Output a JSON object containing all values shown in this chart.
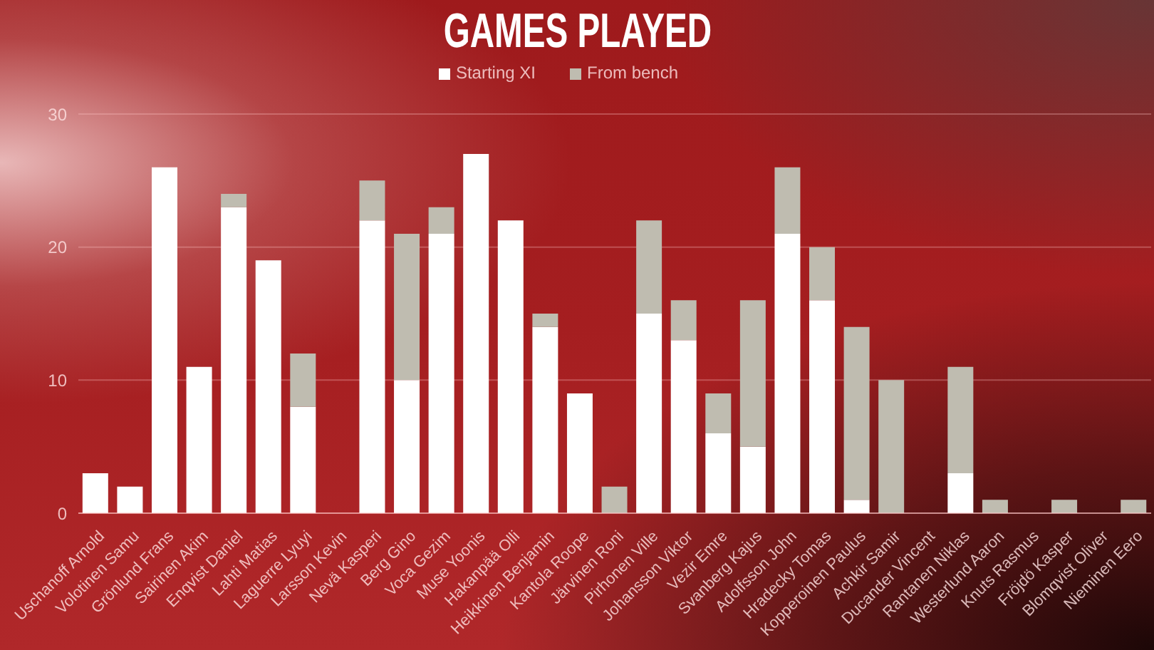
{
  "chart_data": {
    "type": "bar",
    "title": "GAMES PLAYED",
    "categories": [
      "Uschanoff Arnold",
      "Volotinen Samu",
      "Grönlund Frans",
      "Sairinen Akim",
      "Enqvist Daniel",
      "Lahti Matias",
      "Laguerre Lyuyi",
      "Larsson Kevin",
      "Nevä Kasperi",
      "Berg Gino",
      "Voca Gezim",
      "Muse Yoonis",
      "Hakanpää Olli",
      "Heikkinen Benjamin",
      "Kantola Roope",
      "Järvinen Roni",
      "Pirhonen Ville",
      "Johansson Viktor",
      "Vezir Emre",
      "Svanberg Kajus",
      "Adolfsson John",
      "Hradecky Tomas",
      "Kopperoinen Paulus",
      "Achkir Samir",
      "Ducander Vincent",
      "Rantanen Niklas",
      "Westerlund Aaron",
      "Knuts Rasmus",
      "Fröjdö Kasper",
      "Blomqvist Oliver",
      "Nieminen Eero"
    ],
    "series": [
      {
        "name": "Starting XI",
        "color": "#ffffff",
        "values": [
          3,
          2,
          26,
          11,
          23,
          19,
          8,
          0,
          22,
          10,
          21,
          27,
          22,
          14,
          9,
          0,
          15,
          13,
          6,
          5,
          21,
          16,
          1,
          0,
          0,
          3,
          0,
          0,
          0,
          0,
          0
        ]
      },
      {
        "name": "From bench",
        "color": "#bfbcb0",
        "values": [
          0,
          0,
          0,
          0,
          1,
          0,
          4,
          0,
          3,
          11,
          2,
          0,
          0,
          1,
          0,
          2,
          7,
          3,
          3,
          11,
          5,
          4,
          13,
          10,
          0,
          8,
          1,
          0,
          1,
          0,
          1
        ]
      }
    ],
    "stacked": true,
    "ylim": [
      0,
      30
    ],
    "yticks": [
      0,
      10,
      20,
      30
    ],
    "grid": "y",
    "legend": "top"
  }
}
